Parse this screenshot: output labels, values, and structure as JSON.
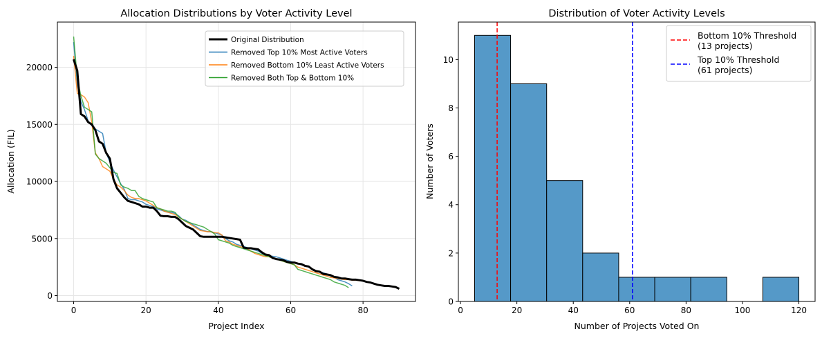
{
  "chart_data": [
    {
      "type": "line",
      "title": "Allocation Distributions by Voter Activity Level",
      "xlabel": "Project Index",
      "ylabel": "Allocation (FIL)",
      "xlim": [
        -4.5,
        94.5
      ],
      "ylim": [
        -510,
        23960
      ],
      "xticks": [
        0,
        20,
        40,
        60,
        80
      ],
      "yticks": [
        0,
        5000,
        10000,
        15000,
        20000
      ],
      "grid": true,
      "legend": "top-right",
      "series": [
        {
          "name": "Original Distribution",
          "color": "#000000",
          "values": [
            20700,
            19700,
            15900,
            15700,
            15200,
            15000,
            14500,
            13500,
            13300,
            12500,
            12000,
            10200,
            9400,
            9000,
            8600,
            8300,
            8200,
            8100,
            8000,
            7800,
            7800,
            7700,
            7700,
            7400,
            7000,
            6950,
            6950,
            6900,
            6900,
            6700,
            6400,
            6100,
            5950,
            5800,
            5500,
            5200,
            5150,
            5150,
            5150,
            5150,
            5150,
            5150,
            5100,
            5050,
            5000,
            4950,
            4900,
            4200,
            4150,
            4150,
            4100,
            4050,
            3800,
            3600,
            3550,
            3300,
            3200,
            3150,
            3100,
            2950,
            2900,
            2900,
            2800,
            2750,
            2600,
            2550,
            2300,
            2150,
            2100,
            1900,
            1850,
            1800,
            1650,
            1600,
            1500,
            1500,
            1450,
            1400,
            1400,
            1350,
            1300,
            1200,
            1150,
            1050,
            950,
            900,
            850,
            850,
            800,
            750,
            600
          ]
        },
        {
          "name": "Removed Top 10% Most Active Voters",
          "color": "#1f77b4",
          "values": [
            22200,
            18500,
            17000,
            16300,
            15300,
            14900,
            14600,
            14400,
            14200,
            12500,
            11700,
            11000,
            10400,
            9800,
            9300,
            8500,
            8400,
            8400,
            8300,
            8200,
            8000,
            7900,
            7800,
            7600,
            7500,
            7400,
            7300,
            7300,
            7200,
            7000,
            6700,
            6600,
            6400,
            6200,
            6000,
            5800,
            5700,
            5600,
            5600,
            5500,
            5400,
            5300,
            5000,
            4800,
            4700,
            4500,
            4400,
            4300,
            4200,
            4100,
            4000,
            3900,
            3700,
            3600,
            3500,
            3450,
            3400,
            3300,
            3200,
            3100,
            3000,
            2900,
            2800,
            2700,
            2600,
            2500,
            2300,
            2200,
            2100,
            2000,
            1900,
            1700,
            1600,
            1400,
            1300,
            1200,
            1050,
            850
          ]
        },
        {
          "name": "Removed Bottom 10% Least Active Voters",
          "color": "#ff7f0e",
          "values": [
            21000,
            17700,
            17600,
            17400,
            16900,
            15200,
            12500,
            12000,
            11300,
            11100,
            10900,
            10200,
            9700,
            9500,
            9200,
            8800,
            8600,
            8500,
            8500,
            8400,
            8300,
            8100,
            7900,
            7700,
            7600,
            7400,
            7300,
            7200,
            7100,
            6900,
            6700,
            6500,
            6300,
            6100,
            5900,
            5700,
            5650,
            5600,
            5600,
            5500,
            5500,
            5300,
            4800,
            4700,
            4500,
            4400,
            4300,
            4200,
            4100,
            3900,
            3700,
            3600,
            3500,
            3400,
            3400,
            3300,
            3200,
            3100,
            3000,
            2900,
            2800,
            2700,
            2500,
            2400,
            2300,
            2200,
            2100,
            2000,
            1900,
            1800,
            1700,
            1600,
            1550,
            1500,
            1450,
            1400,
            1400,
            1350,
            1350,
            1300,
            1300,
            1200,
            1150,
            1050,
            950,
            900,
            850,
            850,
            800,
            750,
            600
          ]
        },
        {
          "name": "Removed Both Top & Bottom 10%",
          "color": "#2ca02c",
          "values": [
            22700,
            19000,
            17500,
            16500,
            16300,
            16100,
            12400,
            12000,
            11800,
            11600,
            11200,
            10800,
            10700,
            9700,
            9500,
            9400,
            9200,
            9200,
            8700,
            8500,
            8400,
            8300,
            8200,
            7700,
            7600,
            7500,
            7400,
            7400,
            7300,
            6900,
            6700,
            6500,
            6400,
            6300,
            6200,
            6100,
            6000,
            5800,
            5600,
            5400,
            4900,
            4800,
            4700,
            4600,
            4400,
            4300,
            4200,
            4100,
            4000,
            3900,
            3800,
            3700,
            3600,
            3500,
            3400,
            3300,
            3200,
            3100,
            3000,
            2900,
            2800,
            2700,
            2300,
            2200,
            2100,
            2000,
            1900,
            1800,
            1700,
            1600,
            1500,
            1400,
            1200,
            1100,
            1000,
            900,
            700
          ]
        }
      ]
    },
    {
      "type": "bar",
      "title": "Distribution of Voter Activity Levels",
      "xlabel": "Number of Projects Voted On",
      "ylabel": "Number of Voters",
      "xlim": [
        -0.75,
        125.75
      ],
      "ylim": [
        0,
        11.55
      ],
      "xticks": [
        0,
        20,
        40,
        60,
        80,
        100,
        120
      ],
      "yticks": [
        0,
        2,
        4,
        6,
        8,
        10
      ],
      "grid": false,
      "legend": "top-right",
      "bin_edges": [
        5,
        17.78,
        30.56,
        43.33,
        56.11,
        68.89,
        81.67,
        94.44,
        107.22,
        120
      ],
      "counts": [
        11,
        9,
        5,
        2,
        1,
        1,
        1,
        0,
        1
      ],
      "bar_color": "#5599c8",
      "thresholds": [
        {
          "name": "Bottom 10% Threshold",
          "detail": "(13 projects)",
          "value": 13,
          "color": "#ff0000"
        },
        {
          "name": "Top 10% Threshold",
          "detail": "(61 projects)",
          "value": 61,
          "color": "#0000ff"
        }
      ]
    }
  ]
}
